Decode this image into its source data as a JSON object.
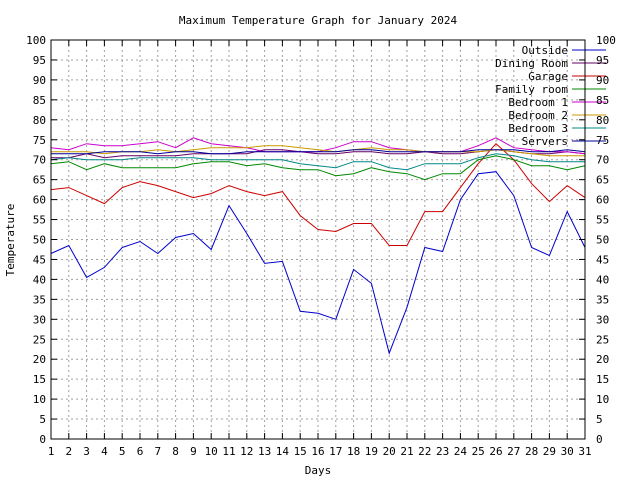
{
  "chart_data": {
    "type": "line",
    "title": "Maximum Temperature Graph for January 2024",
    "xlabel": "Days",
    "ylabel": "Temperature",
    "xlim": [
      1,
      31
    ],
    "ylim": [
      0,
      100
    ],
    "x_ticks": [
      1,
      2,
      3,
      4,
      5,
      6,
      7,
      8,
      9,
      10,
      11,
      12,
      13,
      14,
      15,
      16,
      17,
      18,
      19,
      20,
      21,
      22,
      23,
      24,
      25,
      26,
      27,
      28,
      29,
      30,
      31
    ],
    "y_ticks": [
      0,
      5,
      10,
      15,
      20,
      25,
      30,
      35,
      40,
      45,
      50,
      55,
      60,
      65,
      70,
      75,
      80,
      85,
      90,
      95,
      100
    ],
    "grid": true,
    "legend_position": "top-right",
    "x": [
      1,
      2,
      3,
      4,
      5,
      6,
      7,
      8,
      9,
      10,
      11,
      12,
      13,
      14,
      15,
      16,
      17,
      18,
      19,
      20,
      21,
      22,
      23,
      24,
      25,
      26,
      27,
      28,
      29,
      30,
      31
    ],
    "series": [
      {
        "name": "Outside",
        "color": "#0000cc",
        "values": [
          46.5,
          48.5,
          40.5,
          43,
          48,
          49.5,
          46.5,
          50.5,
          51.5,
          47.5,
          58.5,
          51.5,
          44,
          44.5,
          32,
          31.5,
          30,
          42.5,
          39,
          21.5,
          33,
          48,
          47,
          60,
          66.5,
          67,
          61,
          48,
          46,
          57,
          48
        ]
      },
      {
        "name": "Dining Room",
        "color": "#660066",
        "values": [
          70.5,
          70.5,
          71.5,
          70.5,
          71,
          71,
          71,
          71,
          71.5,
          71.5,
          71.5,
          71.5,
          72.5,
          72.5,
          72,
          71.5,
          71.5,
          72,
          72,
          71.5,
          71.5,
          72,
          71.5,
          71.5,
          72,
          72.5,
          72,
          71.5,
          71.5,
          72,
          71.5
        ]
      },
      {
        "name": "Garage",
        "color": "#cc0000",
        "values": [
          62.5,
          63,
          61,
          59,
          63,
          64.5,
          63.5,
          62,
          60.5,
          61.5,
          63.5,
          62,
          61,
          62,
          56,
          52.5,
          52,
          54,
          54,
          48.5,
          48.5,
          57,
          57,
          63,
          69,
          74,
          70,
          64,
          59.5,
          63.5,
          60.5
        ]
      },
      {
        "name": "Family room",
        "color": "#008800",
        "values": [
          69,
          69.5,
          67.5,
          69,
          68,
          68,
          68,
          68,
          69,
          69.5,
          69.5,
          68.5,
          69,
          68,
          67.5,
          67.5,
          66,
          66.5,
          68,
          67,
          66.5,
          65,
          66.5,
          66.5,
          70,
          71,
          70,
          68.5,
          68.5,
          67.5,
          68.5
        ]
      },
      {
        "name": "Bedroom 1",
        "color": "#cc00cc",
        "values": [
          73,
          72.5,
          74,
          73.5,
          73.5,
          74,
          74.5,
          73,
          75.5,
          74,
          73.5,
          73,
          72,
          72,
          72,
          72,
          73,
          74.5,
          74.5,
          73,
          72.5,
          72,
          72,
          72,
          73.5,
          75.5,
          73,
          72.5,
          72,
          72,
          71.5
        ]
      },
      {
        "name": "Bedroom 2",
        "color": "#cc9900",
        "values": [
          72,
          72,
          72,
          71.5,
          72,
          72,
          72.5,
          72,
          72.5,
          73,
          73,
          73,
          73.5,
          73.5,
          73,
          72.5,
          72,
          72.5,
          73,
          72.5,
          72.5,
          72,
          72,
          72,
          72,
          72.5,
          72,
          71.5,
          71,
          71,
          71
        ]
      },
      {
        "name": "Bedroom 3",
        "color": "#008888",
        "values": [
          70,
          70.5,
          70,
          70,
          70,
          70.5,
          70.5,
          70.5,
          70.5,
          70,
          70,
          70,
          70,
          70,
          69,
          68.5,
          68,
          69.5,
          69.5,
          68,
          67.5,
          69,
          69,
          69,
          70.5,
          71.5,
          71,
          70,
          69.5,
          69.5,
          69.5
        ]
      },
      {
        "name": "Servers",
        "color": "#000099",
        "values": [
          71.5,
          71.5,
          71.5,
          72,
          72,
          72,
          71.5,
          72,
          72,
          71.5,
          71.5,
          72,
          72,
          72,
          72,
          72,
          72,
          72.5,
          72.5,
          72,
          72,
          72,
          72,
          72,
          72.5,
          72.5,
          72.5,
          72,
          72,
          72.5,
          72
        ]
      }
    ]
  }
}
